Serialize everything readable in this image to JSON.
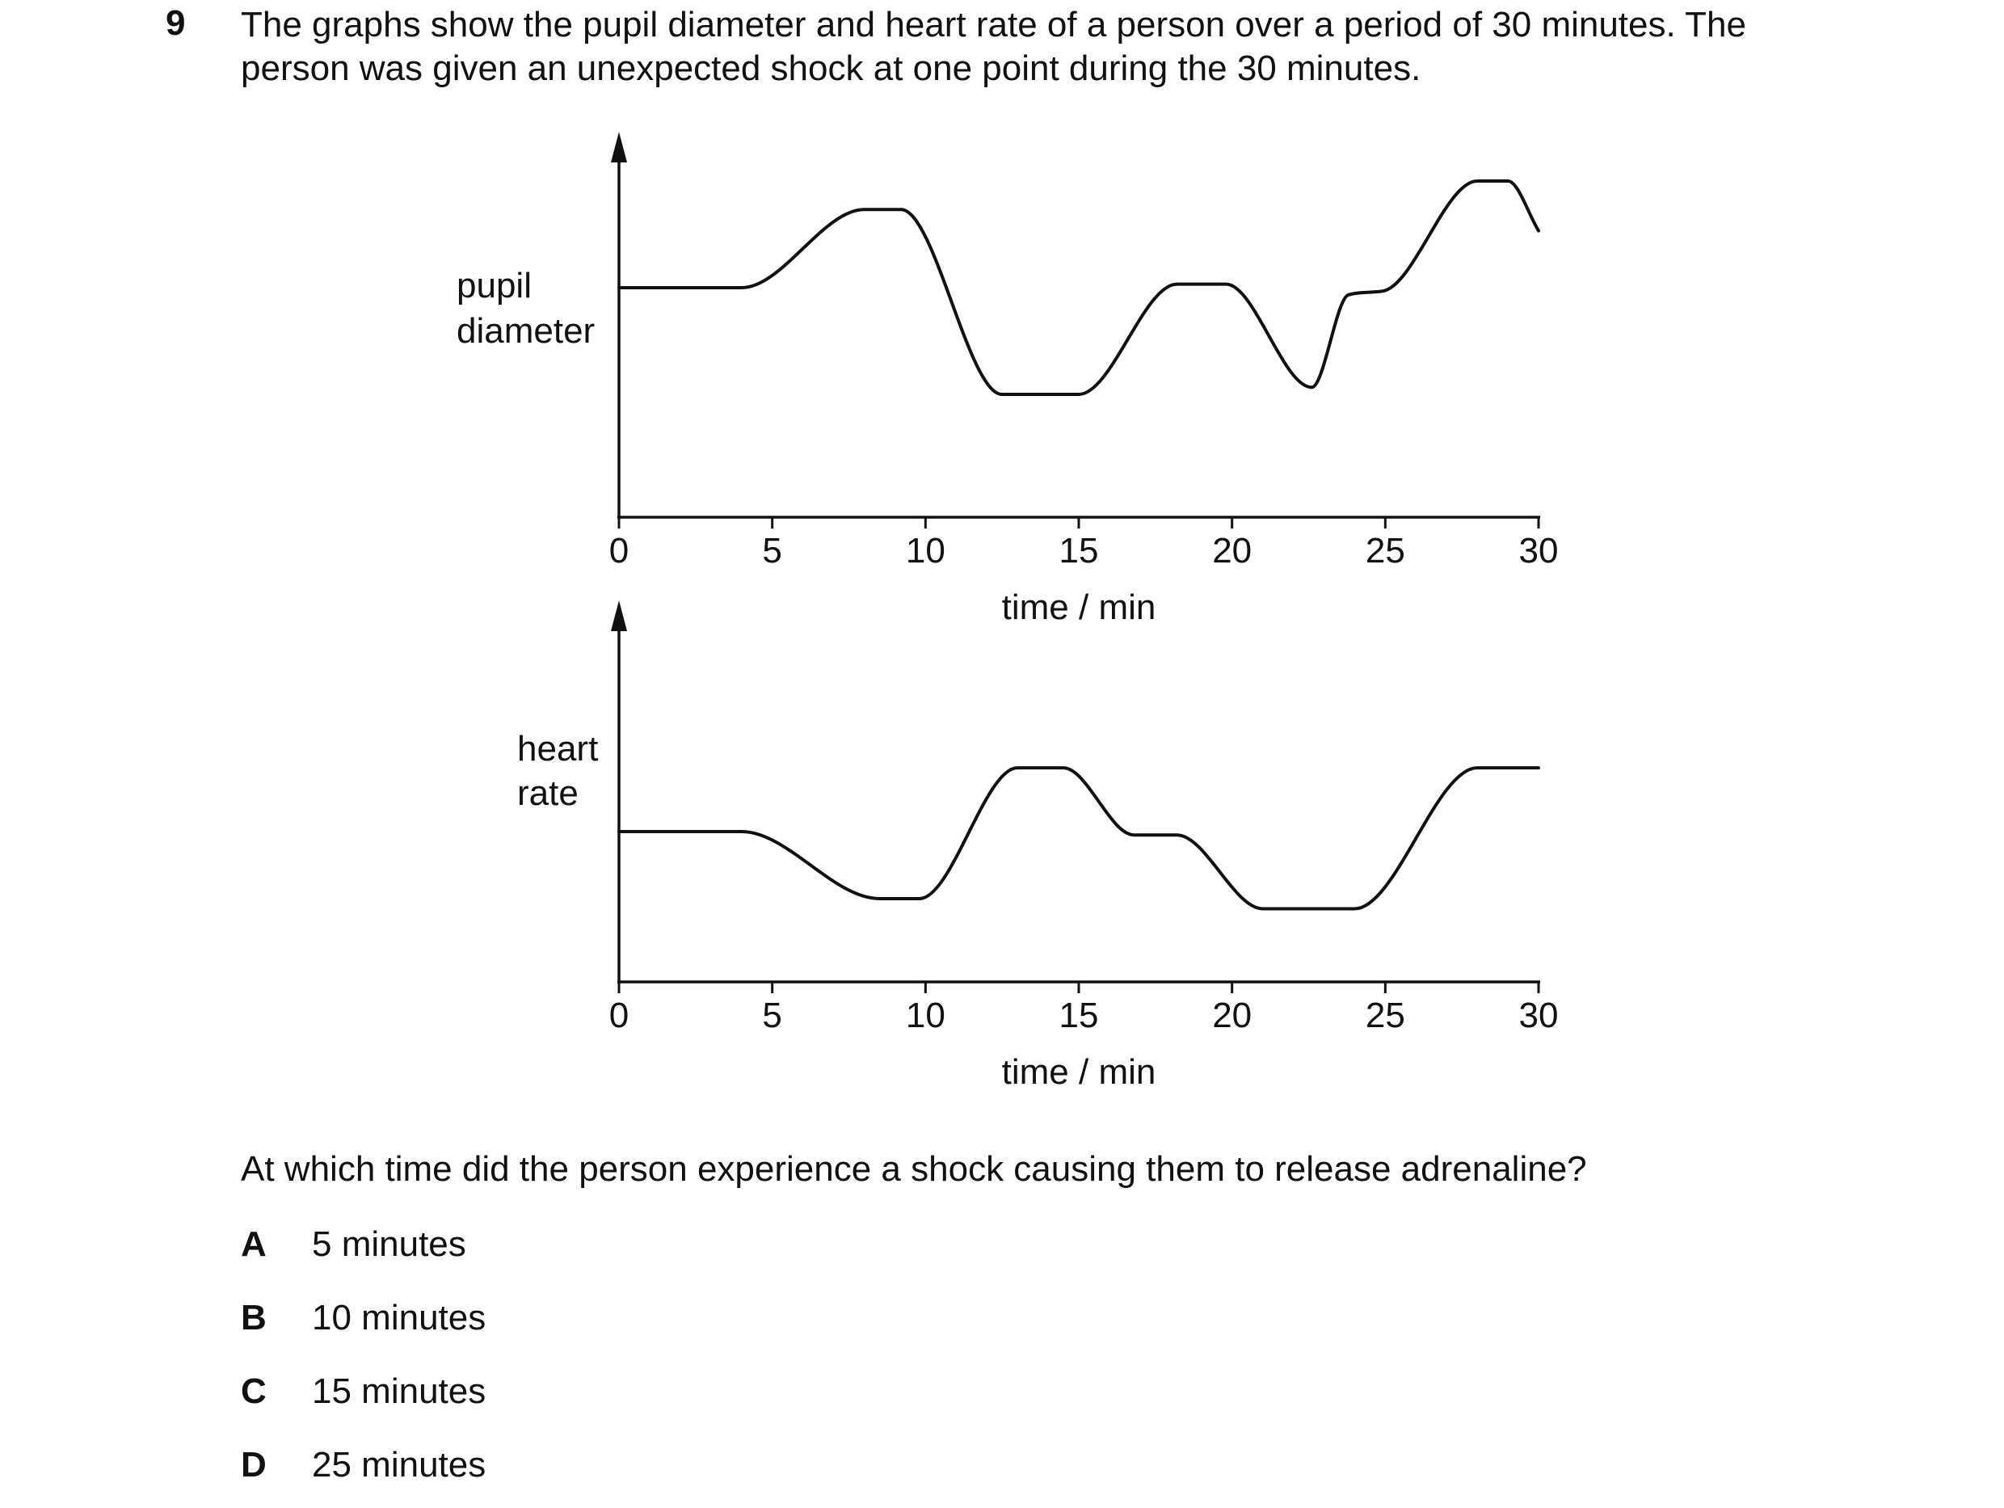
{
  "question": {
    "number": "9",
    "stem_line1": "The graphs show the pupil diameter and heart rate of a person over a period of 30 minutes. The",
    "stem_line2": "person was given an unexpected shock at one point during the 30 minutes.",
    "prompt": "At which time did the person experience a shock causing them to release adrenaline?",
    "options": [
      {
        "letter": "A",
        "text": "5 minutes"
      },
      {
        "letter": "B",
        "text": "10 minutes"
      },
      {
        "letter": "C",
        "text": "15 minutes"
      },
      {
        "letter": "D",
        "text": "25 minutes"
      }
    ]
  },
  "chart_data": [
    {
      "type": "line",
      "id": "pupil",
      "ylabel_lines": [
        "pupil",
        "diameter"
      ],
      "xlabel": "time / min",
      "xlim": [
        0,
        30
      ],
      "ylim": [
        0,
        10
      ],
      "xticks": [
        0,
        5,
        10,
        15,
        20,
        25,
        30
      ],
      "series": [
        {
          "x": [
            0,
            4,
            8,
            9.2,
            12.5,
            15,
            18.2,
            19.8,
            22.6,
            23.8,
            24.9,
            28,
            29,
            30
          ],
          "y": [
            6.0,
            6.0,
            8.2,
            8.2,
            3.0,
            3.0,
            6.1,
            6.1,
            3.2,
            5.8,
            5.9,
            9.0,
            9.0,
            7.6
          ]
        }
      ],
      "grid": false
    },
    {
      "type": "line",
      "id": "heart",
      "ylabel_lines": [
        "heart",
        "rate"
      ],
      "xlabel": "time / min",
      "xlim": [
        0,
        30
      ],
      "ylim": [
        0,
        10
      ],
      "xticks": [
        0,
        5,
        10,
        15,
        20,
        25,
        30
      ],
      "series": [
        {
          "x": [
            0,
            4,
            8.5,
            9.8,
            13,
            14.5,
            16.8,
            18.2,
            21,
            24,
            28,
            30
          ],
          "y": [
            4.0,
            4.0,
            2.0,
            2.0,
            5.9,
            5.9,
            3.9,
            3.9,
            1.7,
            1.7,
            5.9,
            5.9
          ]
        }
      ],
      "grid": false
    }
  ]
}
